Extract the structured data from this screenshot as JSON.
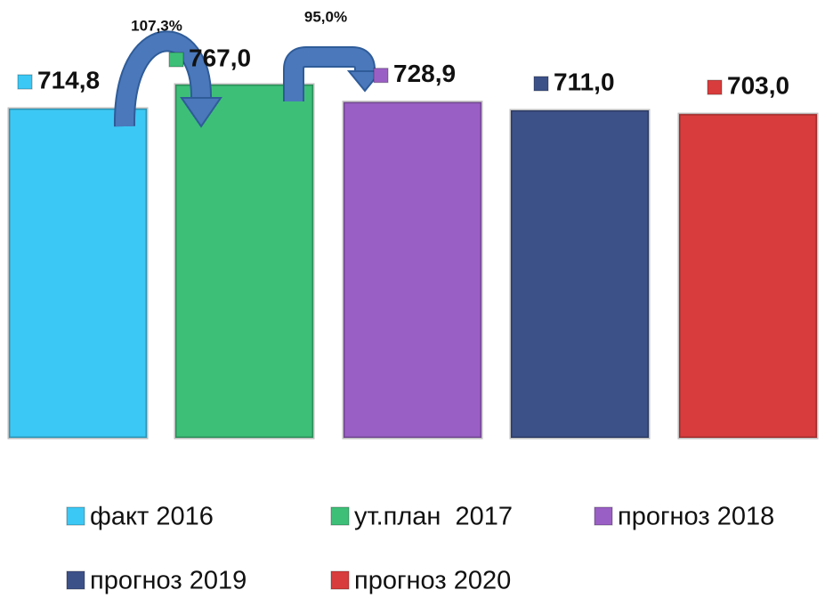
{
  "chart_data": {
    "type": "bar",
    "series": [
      {
        "name": "факт 2016",
        "color": "#3cc8f5",
        "values": [
          714.8
        ],
        "value_labels": [
          "714,8"
        ]
      },
      {
        "name": "ут.план  2017",
        "color": "#3dbf78",
        "values": [
          767.0
        ],
        "value_labels": [
          "767,0"
        ]
      },
      {
        "name": "прогноз 2018",
        "color": "#9a5fc4",
        "values": [
          728.9
        ],
        "value_labels": [
          "728,9"
        ]
      },
      {
        "name": "прогноз 2019",
        "color": "#3d5189",
        "values": [
          711.0
        ],
        "value_labels": [
          "711,0"
        ]
      },
      {
        "name": "прогноз 2020",
        "color": "#d83c3c",
        "values": [
          703.0
        ],
        "value_labels": [
          "703,0"
        ]
      }
    ],
    "annotations": [
      "107,3%",
      "95,0%"
    ]
  }
}
